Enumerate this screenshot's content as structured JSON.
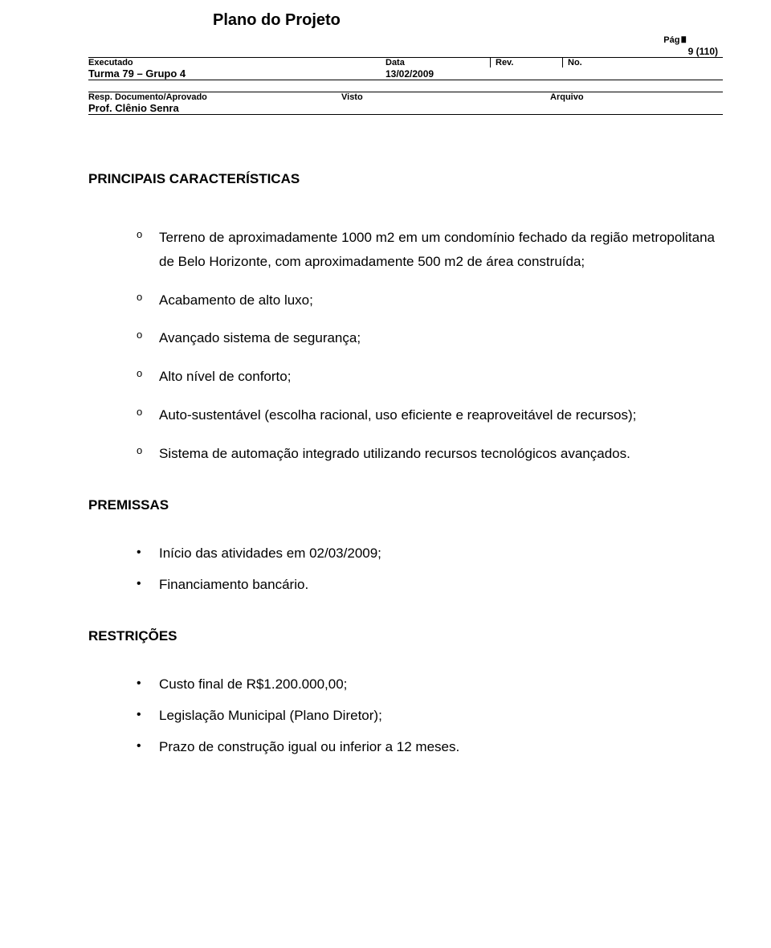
{
  "header": {
    "doc_title": "Plano do Projeto",
    "pag_label": "Pág",
    "page_number": "9 (110)",
    "executado_label": "Executado",
    "executado_value": "Turma 79 – Grupo 4",
    "data_label": "Data",
    "data_value": "13/02/2009",
    "rev_label": "Rev.",
    "no_label": "No.",
    "resp_label": "Resp. Documento/Aprovado",
    "resp_value": "Prof. Clênio Senra",
    "visto_label": "Visto",
    "arquivo_label": "Arquivo"
  },
  "sections": {
    "principais": {
      "title": "PRINCIPAIS CARACTERÍSTICAS",
      "items": [
        "Terreno de aproximadamente 1000 m2 em um condomínio fechado da região metropolitana de Belo Horizonte, com aproximadamente 500 m2 de área construída;",
        "Acabamento de alto luxo;",
        "Avançado sistema de segurança;",
        "Alto nível de conforto;",
        "Auto-sustentável (escolha racional, uso eficiente e reaproveitável de recursos);",
        "Sistema de automação integrado utilizando recursos tecnológicos avançados."
      ]
    },
    "premissas": {
      "title": "PREMISSAS",
      "items": [
        "Início das atividades em 02/03/2009;",
        "Financiamento bancário."
      ]
    },
    "restricoes": {
      "title": "RESTRIÇÕES",
      "items": [
        "Custo final de R$1.200.000,00;",
        "Legislação Municipal (Plano Diretor);",
        "Prazo de construção igual ou inferior a 12 meses."
      ]
    }
  },
  "bullets": {
    "circle": "o",
    "dot": "•"
  }
}
